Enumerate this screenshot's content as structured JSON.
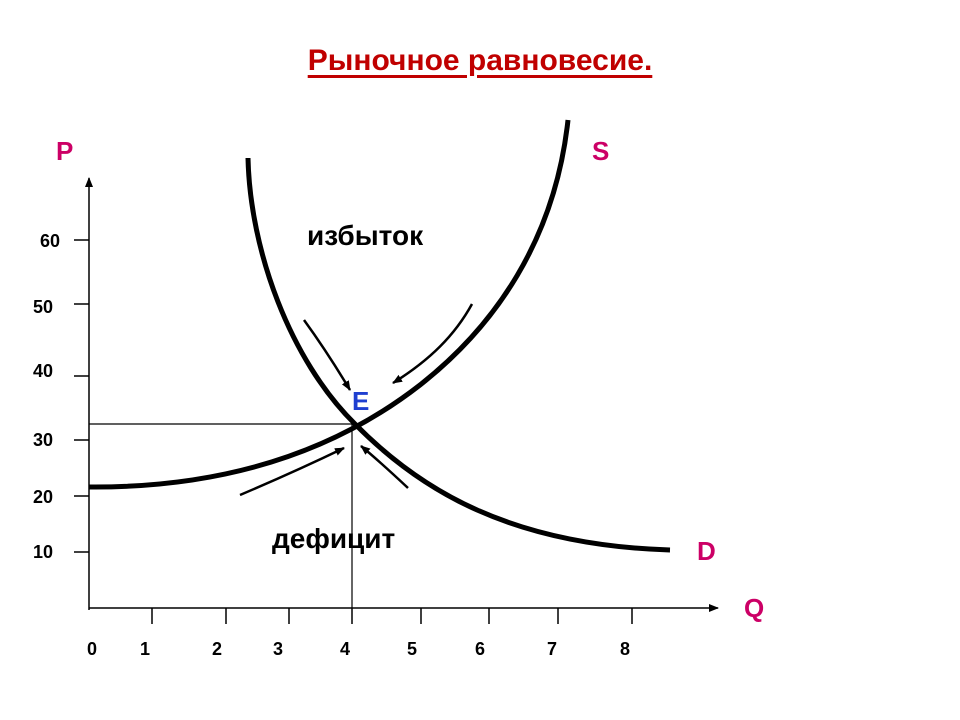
{
  "title": "Рыночное равновесие.",
  "axes": {
    "y_name": "P",
    "x_name": "Q",
    "y_ticks": [
      "60",
      "50",
      "40",
      "30",
      "20",
      "10"
    ],
    "x_ticks": [
      "0",
      "1",
      "2",
      "3",
      "4",
      "5",
      "6",
      "7",
      "8"
    ]
  },
  "curves": {
    "supply": "S",
    "demand": "D"
  },
  "equilibrium": "E",
  "regions": {
    "surplus": "избыток",
    "shortage": "дефицит"
  },
  "colors": {
    "title": "#c00000",
    "axis_names": "#cc0066",
    "equilibrium": "#1f3fd0"
  }
}
